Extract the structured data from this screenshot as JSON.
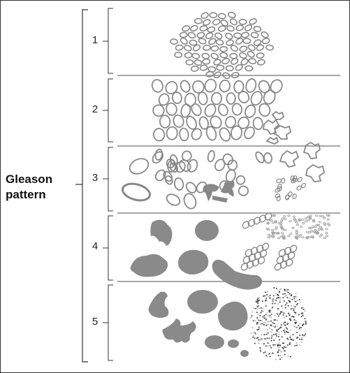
{
  "title_line1": "Gleason",
  "title_line2": "pattern",
  "patterns": [
    {
      "label": "1"
    },
    {
      "label": "2"
    },
    {
      "label": "3"
    },
    {
      "label": "4"
    },
    {
      "label": "5"
    }
  ]
}
